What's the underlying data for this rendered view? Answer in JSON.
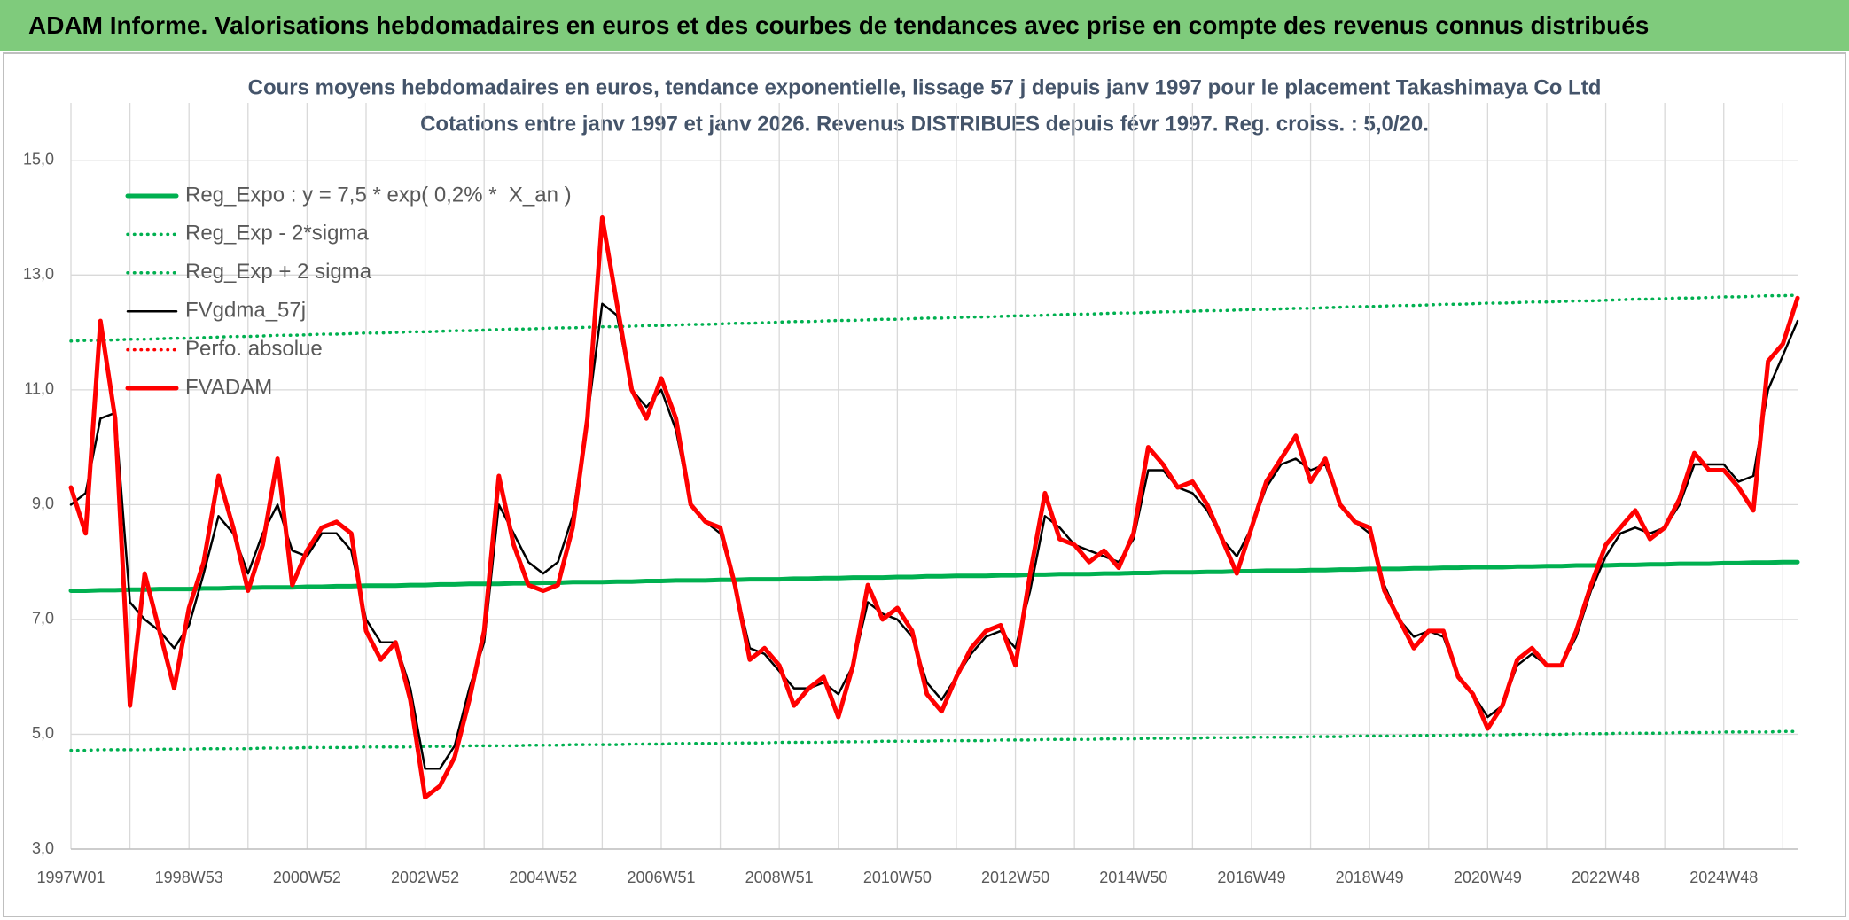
{
  "header": {
    "title": "ADAM Informe. Valorisations hebdomadaires en euros et des courbes de tendances avec prise en compte des revenus connus distribués"
  },
  "chart_data": {
    "type": "line",
    "title": "Cours moyens hebdomadaires en euros, tendance exponentielle, lissage 57 j depuis janv 1997 pour le placement Takashimaya Co Ltd",
    "subtitle": "Cotations entre janv 1997 et janv 2026. Revenus DISTRIBUES depuis févr 1997. Reg. croiss. : 5,0/20.",
    "ylim": [
      3,
      16
    ],
    "yticks": [
      {
        "value": 3,
        "label": "3,0"
      },
      {
        "value": 5,
        "label": "5,0"
      },
      {
        "value": 7,
        "label": "7,0"
      },
      {
        "value": 9,
        "label": "9,0"
      },
      {
        "value": 11,
        "label": "11,0"
      },
      {
        "value": 13,
        "label": "13,0"
      },
      {
        "value": 15,
        "label": "15,0"
      }
    ],
    "grid": true,
    "legend": "top-left",
    "categories": [
      "1997W01",
      null,
      null,
      null,
      null,
      null,
      null,
      null,
      "1998W53",
      null,
      null,
      null,
      null,
      null,
      null,
      null,
      "2000W52",
      null,
      null,
      null,
      null,
      null,
      null,
      null,
      "2002W52",
      null,
      null,
      null,
      null,
      null,
      null,
      null,
      "2004W52",
      null,
      null,
      null,
      null,
      null,
      null,
      null,
      "2006W51",
      null,
      null,
      null,
      null,
      null,
      null,
      null,
      "2008W51",
      null,
      null,
      null,
      null,
      null,
      null,
      null,
      "2010W50",
      null,
      null,
      null,
      null,
      null,
      null,
      null,
      "2012W50",
      null,
      null,
      null,
      null,
      null,
      null,
      null,
      "2014W50",
      null,
      null,
      null,
      null,
      null,
      null,
      null,
      "2016W49",
      null,
      null,
      null,
      null,
      null,
      null,
      null,
      "2018W49",
      null,
      null,
      null,
      null,
      null,
      null,
      null,
      "2020W49",
      null,
      null,
      null,
      null,
      null,
      null,
      null,
      "2022W48",
      null,
      null,
      null,
      null,
      null,
      null,
      null,
      "2024W48",
      null,
      null,
      null,
      null,
      null
    ],
    "series": [
      {
        "name": "Reg_Expo : y = 7,5 * exp( 0,2% *  X_an )",
        "color": "#00b050",
        "line_style": "solid",
        "values": [
          7.5,
          7.5,
          7.51,
          7.51,
          7.52,
          7.52,
          7.53,
          7.53,
          7.53,
          7.54,
          7.54,
          7.55,
          7.55,
          7.56,
          7.56,
          7.56,
          7.57,
          7.57,
          7.58,
          7.58,
          7.59,
          7.59,
          7.59,
          7.6,
          7.6,
          7.61,
          7.61,
          7.62,
          7.62,
          7.62,
          7.63,
          7.63,
          7.64,
          7.64,
          7.65,
          7.65,
          7.65,
          7.66,
          7.66,
          7.67,
          7.67,
          7.68,
          7.68,
          7.68,
          7.69,
          7.69,
          7.7,
          7.7,
          7.7,
          7.71,
          7.71,
          7.72,
          7.72,
          7.73,
          7.73,
          7.73,
          7.74,
          7.74,
          7.75,
          7.75,
          7.76,
          7.76,
          7.76,
          7.77,
          7.77,
          7.78,
          7.78,
          7.79,
          7.79,
          7.79,
          7.8,
          7.8,
          7.81,
          7.81,
          7.82,
          7.82,
          7.82,
          7.83,
          7.83,
          7.84,
          7.84,
          7.85,
          7.85,
          7.85,
          7.86,
          7.86,
          7.87,
          7.87,
          7.88,
          7.88,
          7.88,
          7.89,
          7.89,
          7.9,
          7.9,
          7.91,
          7.91,
          7.91,
          7.92,
          7.92,
          7.93,
          7.93,
          7.94,
          7.94,
          7.94,
          7.95,
          7.95,
          7.96,
          7.96,
          7.97,
          7.97,
          7.97,
          7.98,
          7.98,
          7.99,
          7.99,
          8.0,
          8.0
        ]
      },
      {
        "name": "Reg_Exp - 2*sigma",
        "color": "#00b050",
        "line_style": "dotted",
        "values": [
          4.72,
          4.72,
          4.73,
          4.73,
          4.73,
          4.73,
          4.74,
          4.74,
          4.74,
          4.75,
          4.75,
          4.75,
          4.75,
          4.76,
          4.76,
          4.76,
          4.77,
          4.77,
          4.77,
          4.77,
          4.78,
          4.78,
          4.78,
          4.78,
          4.79,
          4.79,
          4.79,
          4.8,
          4.8,
          4.8,
          4.8,
          4.81,
          4.81,
          4.81,
          4.82,
          4.82,
          4.82,
          4.82,
          4.83,
          4.83,
          4.83,
          4.84,
          4.84,
          4.84,
          4.84,
          4.85,
          4.85,
          4.85,
          4.86,
          4.86,
          4.86,
          4.86,
          4.87,
          4.87,
          4.87,
          4.88,
          4.88,
          4.88,
          4.88,
          4.89,
          4.89,
          4.89,
          4.89,
          4.9,
          4.9,
          4.9,
          4.91,
          4.91,
          4.91,
          4.91,
          4.92,
          4.92,
          4.92,
          4.93,
          4.93,
          4.93,
          4.93,
          4.94,
          4.94,
          4.94,
          4.95,
          4.95,
          4.95,
          4.95,
          4.96,
          4.96,
          4.96,
          4.97,
          4.97,
          4.97,
          4.97,
          4.98,
          4.98,
          4.98,
          4.99,
          4.99,
          4.99,
          4.99,
          5.0,
          5.0,
          5.0,
          5.0,
          5.01,
          5.01,
          5.01,
          5.02,
          5.02,
          5.02,
          5.02,
          5.03,
          5.03,
          5.03,
          5.04,
          5.04,
          5.04,
          5.04,
          5.05,
          5.05
        ]
      },
      {
        "name": "Reg_Exp + 2 sigma",
        "color": "#00b050",
        "line_style": "dotted",
        "values": [
          11.85,
          11.86,
          11.86,
          11.87,
          11.88,
          11.88,
          11.89,
          11.9,
          11.9,
          11.91,
          11.92,
          11.93,
          11.93,
          11.94,
          11.95,
          11.95,
          11.96,
          11.97,
          11.97,
          11.98,
          11.99,
          11.99,
          12.0,
          12.01,
          12.01,
          12.02,
          12.03,
          12.03,
          12.04,
          12.05,
          12.06,
          12.06,
          12.07,
          12.08,
          12.08,
          12.09,
          12.1,
          12.1,
          12.11,
          12.12,
          12.12,
          12.13,
          12.14,
          12.14,
          12.15,
          12.16,
          12.16,
          12.17,
          12.18,
          12.19,
          12.19,
          12.2,
          12.21,
          12.21,
          12.22,
          12.23,
          12.23,
          12.24,
          12.25,
          12.25,
          12.26,
          12.27,
          12.27,
          12.28,
          12.29,
          12.29,
          12.3,
          12.31,
          12.32,
          12.32,
          12.33,
          12.34,
          12.34,
          12.35,
          12.36,
          12.36,
          12.37,
          12.38,
          12.38,
          12.39,
          12.4,
          12.4,
          12.41,
          12.42,
          12.42,
          12.43,
          12.44,
          12.45,
          12.45,
          12.46,
          12.47,
          12.47,
          12.48,
          12.49,
          12.49,
          12.5,
          12.51,
          12.51,
          12.52,
          12.53,
          12.53,
          12.54,
          12.55,
          12.55,
          12.56,
          12.57,
          12.58,
          12.58,
          12.59,
          12.6,
          12.6,
          12.61,
          12.62,
          12.62,
          12.63,
          12.64,
          12.64,
          12.65
        ]
      },
      {
        "name": "FVgdma_57j",
        "color": "#000000",
        "line_style": "solid",
        "values": [
          9.0,
          9.2,
          10.5,
          10.6,
          7.3,
          7.0,
          6.8,
          6.5,
          6.9,
          7.8,
          8.8,
          8.5,
          7.8,
          8.5,
          9.0,
          8.2,
          8.1,
          8.5,
          8.5,
          8.2,
          7.0,
          6.6,
          6.6,
          5.8,
          4.4,
          4.4,
          4.8,
          5.8,
          6.6,
          9.0,
          8.5,
          8.0,
          7.8,
          8.0,
          8.8,
          10.5,
          12.5,
          12.3,
          11.0,
          10.7,
          11.0,
          10.3,
          9.0,
          8.7,
          8.5,
          7.6,
          6.5,
          6.4,
          6.1,
          5.8,
          5.8,
          5.9,
          5.7,
          6.2,
          7.3,
          7.1,
          7.0,
          6.7,
          5.9,
          5.6,
          6.0,
          6.4,
          6.7,
          6.8,
          6.5,
          7.5,
          8.8,
          8.6,
          8.3,
          8.2,
          8.1,
          8.0,
          8.4,
          9.6,
          9.6,
          9.3,
          9.2,
          8.9,
          8.4,
          8.1,
          8.6,
          9.3,
          9.7,
          9.8,
          9.6,
          9.7,
          9.0,
          8.7,
          8.5,
          7.6,
          7.0,
          6.7,
          6.8,
          6.7,
          6.0,
          5.7,
          5.3,
          5.5,
          6.2,
          6.4,
          6.2,
          6.2,
          6.7,
          7.5,
          8.1,
          8.5,
          8.6,
          8.5,
          8.6,
          9.0,
          9.7,
          9.7,
          9.7,
          9.4,
          9.5,
          11.0,
          11.6,
          12.2
        ]
      },
      {
        "name": "Perfo. absolue",
        "color": "#ff0000",
        "line_style": "dotted",
        "values": [
          null,
          null,
          null,
          null,
          null,
          null,
          null,
          null,
          null,
          null,
          null,
          null,
          null,
          null,
          null,
          null,
          null,
          null,
          null,
          null,
          null,
          null,
          null,
          null,
          null,
          null,
          null,
          null,
          null,
          null,
          null,
          null,
          null,
          null,
          null,
          null,
          null,
          null,
          null,
          null,
          null,
          null,
          null,
          null,
          null,
          null,
          null,
          null,
          null,
          null,
          null,
          null,
          null,
          null,
          null,
          null,
          null,
          null,
          null,
          null,
          null,
          null,
          null,
          null,
          null,
          null,
          null,
          null,
          null,
          null,
          null,
          null,
          null,
          null,
          null,
          null,
          null,
          null,
          null,
          null,
          null,
          null,
          null,
          null,
          null,
          null,
          null,
          null,
          null,
          null,
          null,
          null,
          null,
          null,
          null,
          null,
          null,
          null,
          null,
          null,
          null,
          null,
          null,
          null,
          null,
          null,
          null,
          null,
          null,
          null,
          null,
          null,
          null,
          null,
          null,
          null,
          null,
          null
        ]
      },
      {
        "name": "FVADAM",
        "color": "#ff0000",
        "line_style": "solid",
        "values": [
          9.3,
          8.5,
          12.2,
          10.5,
          5.5,
          7.8,
          6.8,
          5.8,
          7.2,
          8.0,
          9.5,
          8.6,
          7.5,
          8.3,
          9.8,
          7.6,
          8.2,
          8.6,
          8.7,
          8.5,
          6.8,
          6.3,
          6.6,
          5.6,
          3.9,
          4.1,
          4.6,
          5.6,
          6.8,
          9.5,
          8.3,
          7.6,
          7.5,
          7.6,
          8.6,
          10.5,
          14.0,
          12.5,
          11.0,
          10.5,
          11.2,
          10.5,
          9.0,
          8.7,
          8.6,
          7.6,
          6.3,
          6.5,
          6.2,
          5.5,
          5.8,
          6.0,
          5.3,
          6.2,
          7.6,
          7.0,
          7.2,
          6.8,
          5.7,
          5.4,
          6.0,
          6.5,
          6.8,
          6.9,
          6.2,
          7.8,
          9.2,
          8.4,
          8.3,
          8.0,
          8.2,
          7.9,
          8.5,
          10.0,
          9.7,
          9.3,
          9.4,
          9.0,
          8.4,
          7.8,
          8.6,
          9.4,
          9.8,
          10.2,
          9.4,
          9.8,
          9.0,
          8.7,
          8.6,
          7.5,
          7.0,
          6.5,
          6.8,
          6.8,
          6.0,
          5.7,
          5.1,
          5.5,
          6.3,
          6.5,
          6.2,
          6.2,
          6.8,
          7.6,
          8.3,
          8.6,
          8.9,
          8.4,
          8.6,
          9.1,
          9.9,
          9.6,
          9.6,
          9.3,
          8.9,
          11.5,
          11.8,
          12.6
        ]
      }
    ]
  }
}
